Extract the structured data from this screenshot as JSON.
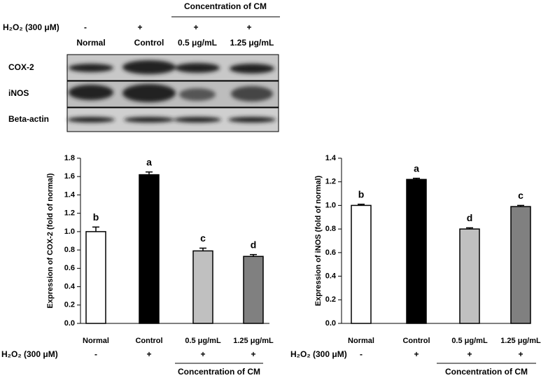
{
  "blot": {
    "treatment_label": "H₂O₂ (300 μM)",
    "treatment_signs": [
      "-",
      "+",
      "+",
      "+"
    ],
    "group_label": "Concentration of CM",
    "lanes": [
      "Normal",
      "Control",
      "0.5 μg/mL",
      "1.25 μg/mL"
    ],
    "rows": [
      "COX-2",
      "iNOS",
      "Beta-actin"
    ]
  },
  "chart_data": [
    {
      "type": "bar",
      "y_label": "Expression of COX-2 (fold of normal)",
      "categories": [
        "Normal",
        "Control",
        "0.5 μg/mL",
        "1.25 μg/mL"
      ],
      "values": [
        1.0,
        1.62,
        0.79,
        0.73
      ],
      "errors": [
        0.05,
        0.03,
        0.03,
        0.02
      ],
      "annotations": [
        "b",
        "a",
        "c",
        "d"
      ],
      "colors": [
        "#ffffff",
        "#000000",
        "#c0c0c0",
        "#808080"
      ],
      "ylim": [
        0,
        1.8
      ],
      "yticks": [
        {
          "value": 0,
          "label": "0.0"
        },
        0.2,
        0.4,
        0.6,
        0.8,
        {
          "value": 1,
          "label": "1.0"
        },
        1.2,
        1.4,
        1.6,
        1.8
      ],
      "treatment_label": "H₂O₂ (300 μM)",
      "treatment_signs": [
        "-",
        "+",
        "+",
        "+"
      ],
      "group_label": "Concentration of CM"
    },
    {
      "type": "bar",
      "y_label": "Expression of iNOS (fold of normal)",
      "categories": [
        "Normal",
        "Control",
        "0.5 μg/mL",
        "1.25 μg/mL"
      ],
      "values": [
        1.0,
        1.22,
        0.8,
        0.99
      ],
      "errors": [
        0.01,
        0.01,
        0.01,
        0.01
      ],
      "annotations": [
        "b",
        "a",
        "d",
        "c"
      ],
      "colors": [
        "#ffffff",
        "#000000",
        "#c0c0c0",
        "#808080"
      ],
      "ylim": [
        0,
        1.4
      ],
      "yticks": [
        {
          "value": 0,
          "label": "0.0"
        },
        0.2,
        0.4,
        0.6,
        0.8,
        {
          "value": 1,
          "label": "1.0"
        },
        1.2,
        1.4
      ],
      "treatment_label": "H₂O₂ (300 μM)",
      "treatment_signs": [
        "-",
        "+",
        "+",
        "+"
      ],
      "group_label": "Concentration of CM"
    }
  ]
}
